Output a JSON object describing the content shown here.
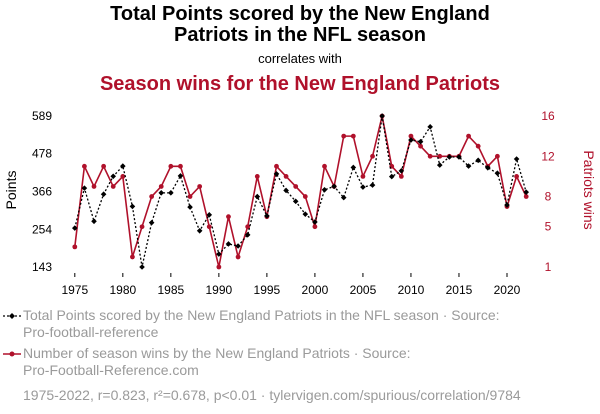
{
  "header": {
    "title_line1": "Total Points scored by the New England",
    "title_line2": "Patriots in the NFL season",
    "connector": "correlates with",
    "title2": "Season wins for the New England Patriots"
  },
  "colors": {
    "series1": "#000000",
    "series2": "#b0112b",
    "muted": "#9a9a9a"
  },
  "legend": {
    "item1_line1": "Total Points scored by the New England Patriots in the NFL season · Source:",
    "item1_line2": "Pro-football-reference",
    "item2_line1": "Number of season wins by the New England Patriots · Source:",
    "item2_line2": "Pro-Football-Reference.com"
  },
  "footer": "1975-2022, r=0.823, r²=0.678, p<0.01 · tylervigen.com/spurious/correlation/9784",
  "chart_data": {
    "type": "line",
    "x": [
      1975,
      1976,
      1977,
      1978,
      1979,
      1980,
      1981,
      1982,
      1983,
      1984,
      1985,
      1986,
      1987,
      1988,
      1989,
      1990,
      1991,
      1992,
      1993,
      1994,
      1995,
      1996,
      1997,
      1998,
      1999,
      2000,
      2001,
      2002,
      2003,
      2004,
      2005,
      2006,
      2007,
      2008,
      2009,
      2010,
      2011,
      2012,
      2013,
      2014,
      2015,
      2016,
      2017,
      2018,
      2019,
      2020,
      2021,
      2022
    ],
    "xticks": [
      1975,
      1980,
      1985,
      1990,
      1995,
      2000,
      2005,
      2010,
      2015,
      2020
    ],
    "xlim": [
      1974.5,
      2022.5
    ],
    "y_left": {
      "label": "Points",
      "ticks": [
        "143",
        "254",
        "366",
        "478",
        "589"
      ],
      "ylim": [
        143,
        589
      ]
    },
    "y_right": {
      "label": "Patriots wins",
      "ticks": [
        "1",
        "5",
        "8",
        "12",
        "16"
      ],
      "ylim": [
        1,
        16
      ]
    },
    "series": [
      {
        "name": "Total Points scored by the New England Patriots in the NFL season",
        "axis": "left",
        "style": "dotted",
        "marker": "diamond",
        "values": [
          258,
          376,
          278,
          358,
          411,
          441,
          322,
          143,
          274,
          362,
          362,
          412,
          320,
          250,
          297,
          181,
          211,
          205,
          238,
          351,
          294,
          418,
          369,
          337,
          299,
          276,
          371,
          381,
          348,
          437,
          379,
          385,
          589,
          410,
          427,
          518,
          513,
          557,
          444,
          468,
          468,
          441,
          458,
          436,
          420,
          326,
          462,
          364
        ]
      },
      {
        "name": "Number of season wins by the New England Patriots",
        "axis": "right",
        "style": "solid",
        "marker": "circle",
        "values": [
          3,
          11,
          9,
          11,
          9,
          10,
          2,
          5,
          8,
          9,
          11,
          11,
          8,
          9,
          5,
          1,
          6,
          2,
          5,
          10,
          6,
          11,
          10,
          9,
          8,
          5,
          11,
          9,
          14,
          14,
          10,
          12,
          16,
          11,
          10,
          14,
          13,
          12,
          12,
          12,
          12,
          14,
          13,
          11,
          12,
          7,
          10,
          8
        ]
      }
    ]
  }
}
